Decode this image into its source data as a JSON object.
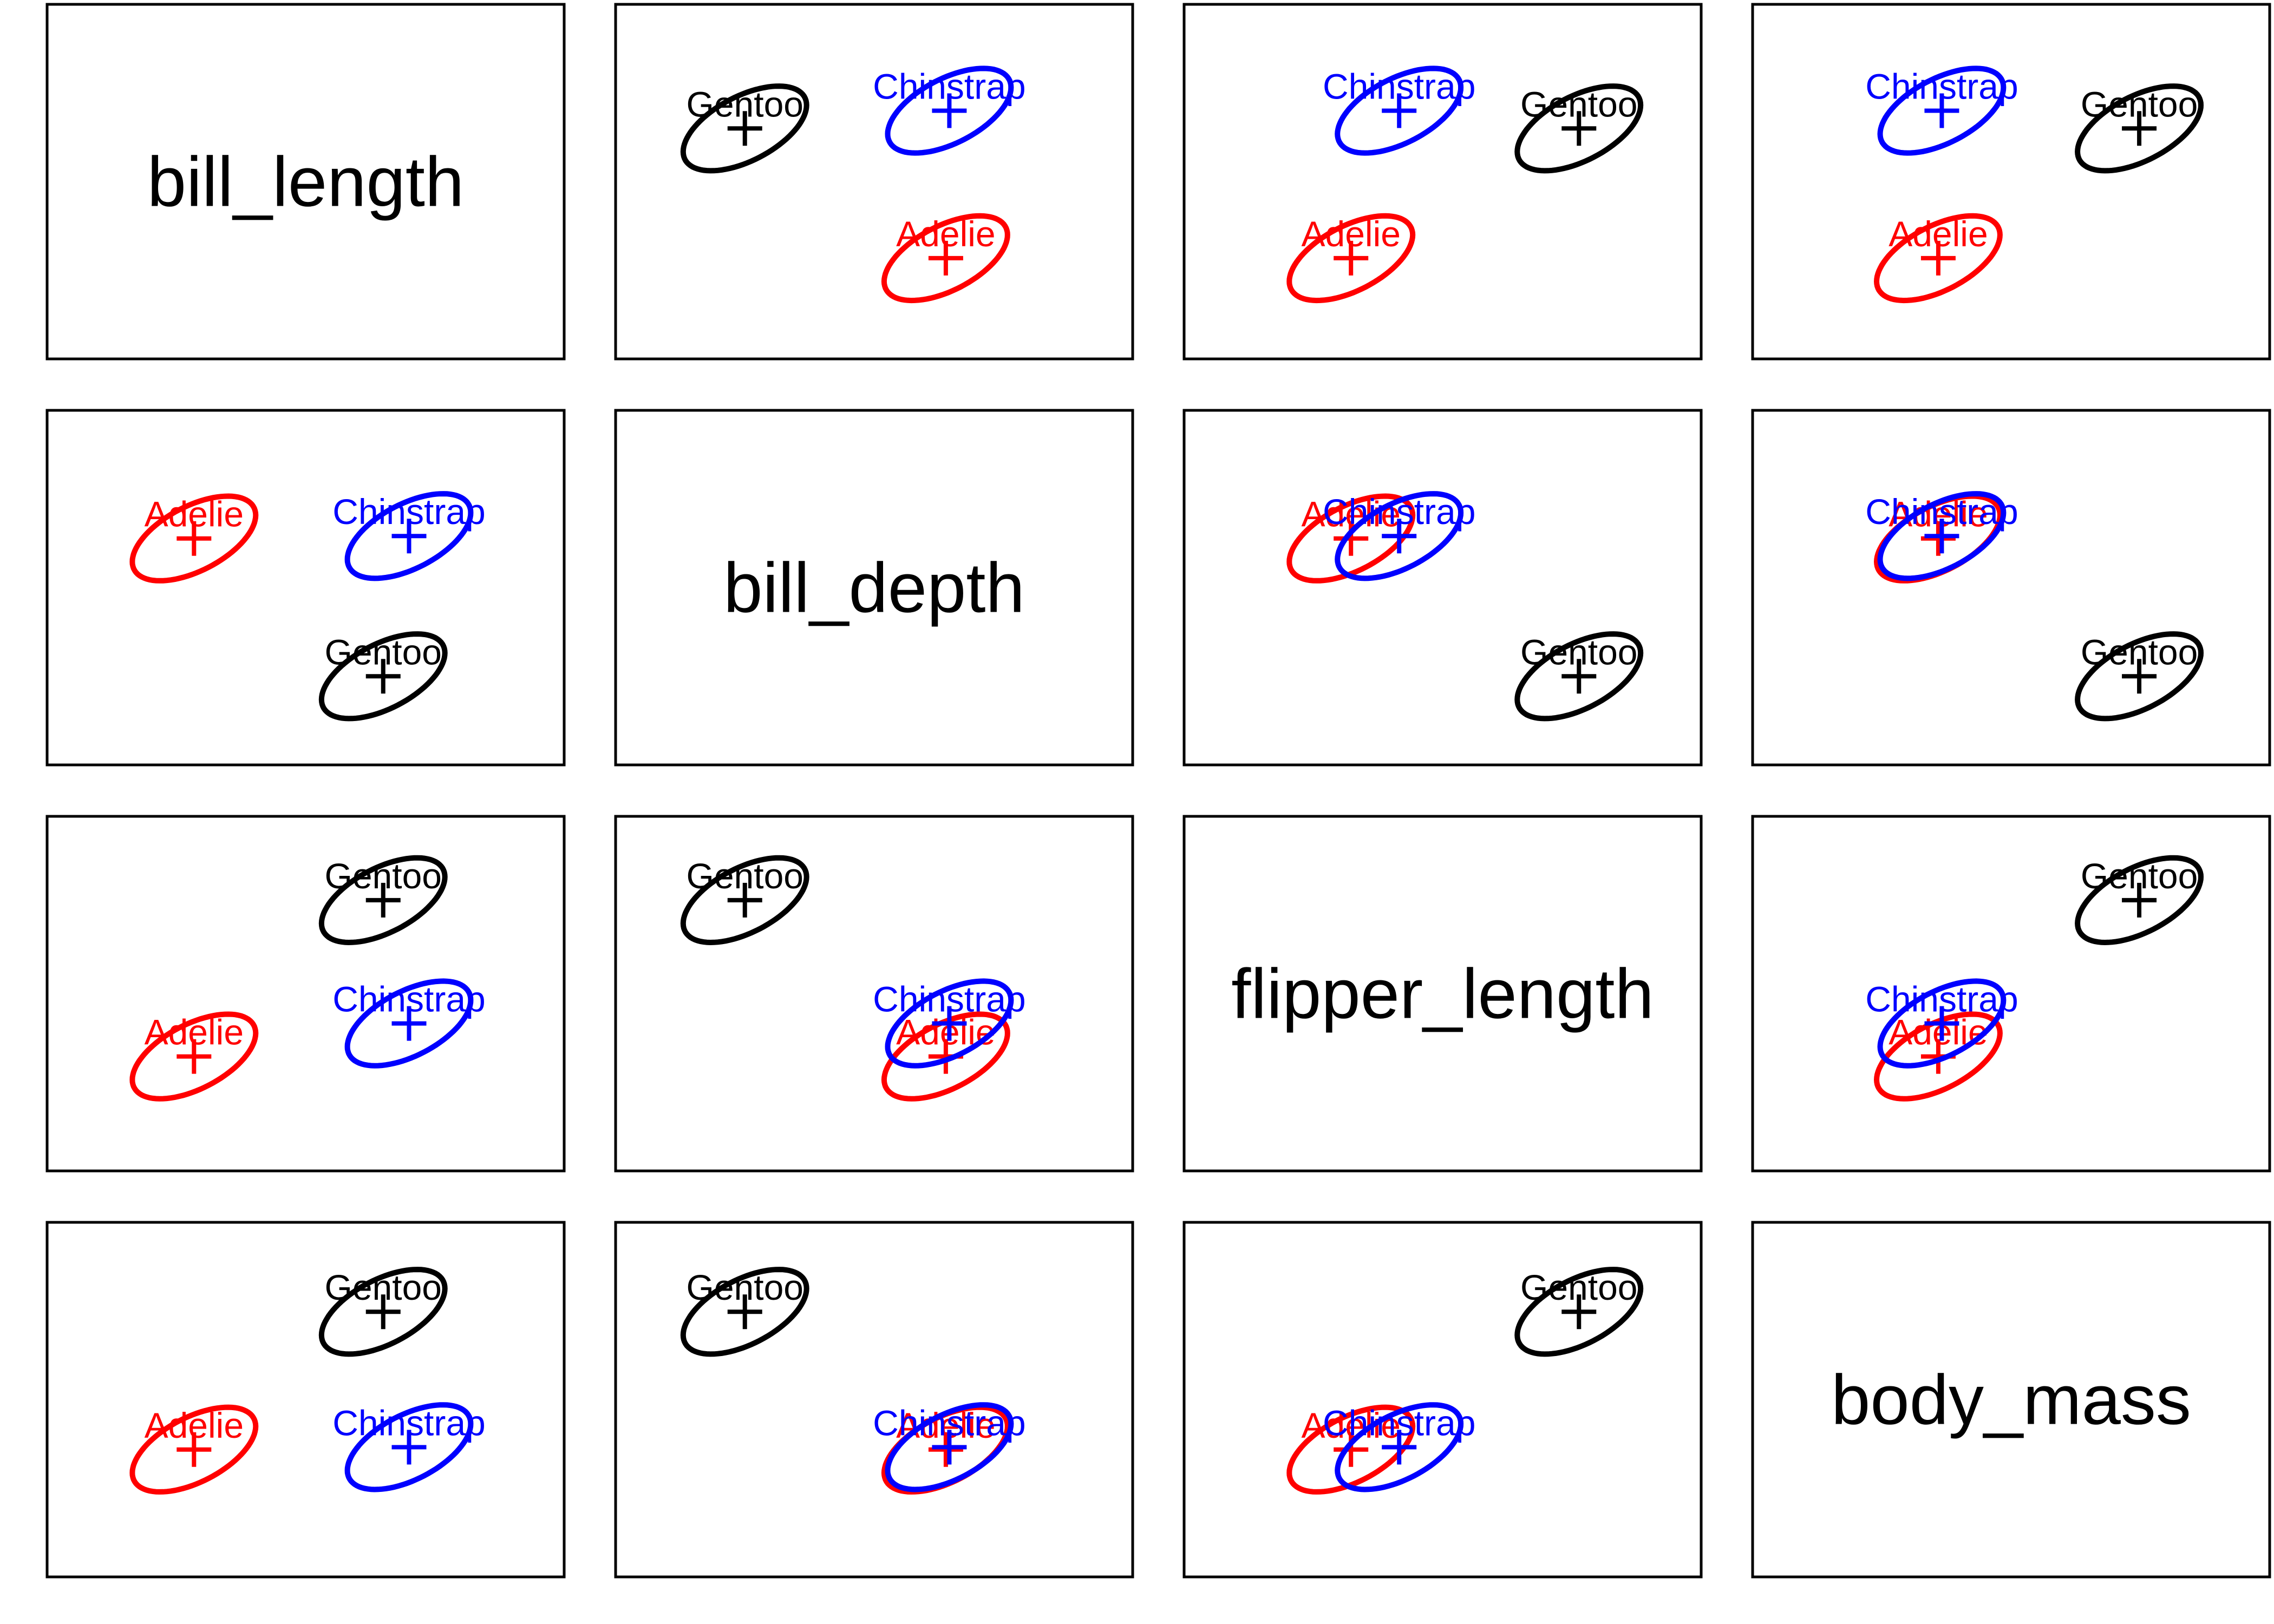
{
  "chart_data": {
    "type": "scatter",
    "title": "",
    "variables": [
      "bill_length",
      "bill_depth",
      "flipper_length",
      "body_mass"
    ],
    "grid": false,
    "legend": "none",
    "colors": {
      "Adelie": "#ff0000",
      "Chinstrap": "#0000ff",
      "Gentoo": "#000000"
    },
    "series": [
      {
        "name": "Adelie",
        "centroid": {
          "bill_length": -0.95,
          "bill_depth": 0.61,
          "flipper_length": -0.78,
          "body_mass": -0.62
        }
      },
      {
        "name": "Chinstrap",
        "centroid": {
          "bill_length": 0.88,
          "bill_depth": 0.64,
          "flipper_length": -0.37,
          "body_mass": -0.59
        }
      },
      {
        "name": "Gentoo",
        "centroid": {
          "bill_length": 0.66,
          "bill_depth": -1.1,
          "flipper_length": 1.16,
          "body_mass": 1.09
        }
      }
    ],
    "ellipse_spread": {
      "Adelie": 0.5,
      "Chinstrap": 0.5,
      "Gentoo": 0.5
    },
    "correlation": 0.55
  }
}
